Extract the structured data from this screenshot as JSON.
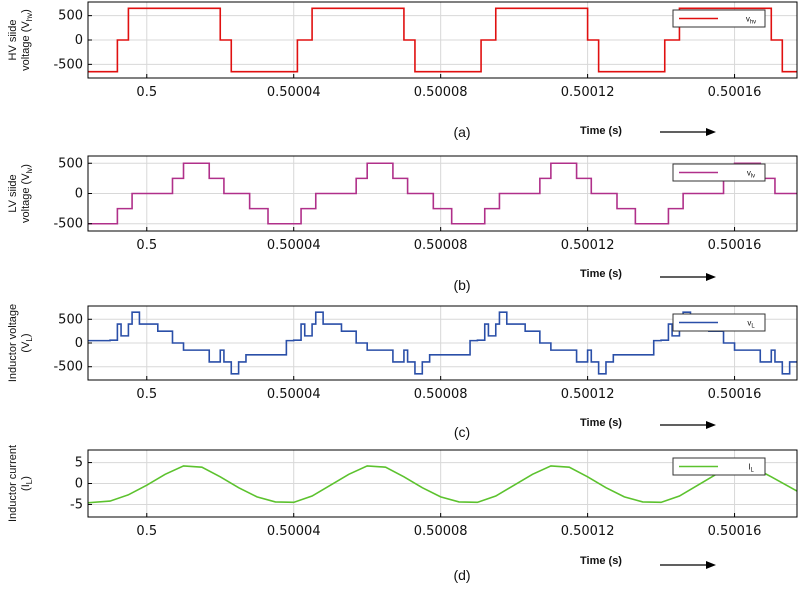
{
  "chart_data": [
    {
      "type": "line",
      "caption": "(a)",
      "ylabel_main": "HV siide",
      "ylabel_sub": "voltage (V",
      "ylabel_subscript": "hv",
      "ylabel_close": ")",
      "xlabel": "Time (s)",
      "xlim": [
        0.499984,
        0.500177
      ],
      "ylim": [
        -780,
        780
      ],
      "yticks": [
        500,
        0,
        -500
      ],
      "ytick_labels": [
        "500",
        "0",
        "-500"
      ],
      "xticks": [
        0.5,
        0.50004,
        0.50008,
        0.50012,
        0.50016
      ],
      "xtick_labels": [
        "0.5",
        "0.50004",
        "0.50008",
        "0.50012",
        "0.50016"
      ],
      "grid": true,
      "legend_position": "top-right",
      "color": "#e01010",
      "series": [
        {
          "name": "v",
          "name_subscript": "hv",
          "step_t": [
            0.499984,
            0.499992,
            0.499995,
            0.50002,
            0.500023,
            0.500041,
            0.500045,
            0.50007,
            0.500073,
            0.500091,
            0.500095,
            0.50012,
            0.500123,
            0.500141,
            0.500145,
            0.50017,
            0.500173,
            0.500177
          ],
          "step_v": [
            -650,
            0,
            650,
            0,
            -650,
            0,
            650,
            0,
            -650,
            0,
            650,
            0,
            -650,
            0,
            650,
            0,
            -650,
            -650
          ]
        }
      ]
    },
    {
      "type": "line",
      "caption": "(b)",
      "ylabel_main": "LV siide",
      "ylabel_sub": "voltage (V",
      "ylabel_subscript": "lv",
      "ylabel_close": ")",
      "xlabel": "Time (s)",
      "xlim": [
        0.499984,
        0.500177
      ],
      "ylim": [
        -620,
        620
      ],
      "yticks": [
        500,
        0,
        -500
      ],
      "ytick_labels": [
        "500",
        "0",
        "-500"
      ],
      "xticks": [
        0.5,
        0.50004,
        0.50008,
        0.50012,
        0.50016
      ],
      "xtick_labels": [
        "0.5",
        "0.50004",
        "0.50008",
        "0.50012",
        "0.50016"
      ],
      "grid": true,
      "legend_position": "top-right",
      "color": "#b0308a",
      "series": [
        {
          "name": "v",
          "name_subscript": "lv",
          "step_t": [
            0.499984,
            0.499992,
            0.499996,
            0.500003,
            0.500007,
            0.50001,
            0.500017,
            0.500021,
            0.500028,
            0.500033,
            0.500038,
            0.500042,
            0.500046,
            0.500053,
            0.500057,
            0.50006,
            0.500067,
            0.500071,
            0.500078,
            0.500083,
            0.500088,
            0.500092,
            0.500096,
            0.500103,
            0.500107,
            0.50011,
            0.500117,
            0.500121,
            0.500128,
            0.500133,
            0.500138,
            0.500142,
            0.500146,
            0.500153,
            0.500157,
            0.50016,
            0.500167,
            0.500171,
            0.500177
          ],
          "step_v": [
            -500,
            -250,
            0,
            0,
            250,
            500,
            250,
            0,
            -250,
            -500,
            -500,
            -250,
            0,
            0,
            250,
            500,
            250,
            0,
            -250,
            -500,
            -500,
            -250,
            0,
            0,
            250,
            500,
            250,
            0,
            -250,
            -500,
            -500,
            -250,
            0,
            0,
            250,
            500,
            250,
            0,
            0
          ]
        }
      ]
    },
    {
      "type": "line",
      "caption": "(c)",
      "ylabel_main": "Inductor voltage",
      "ylabel_sub": "(V",
      "ylabel_subscript": "L",
      "ylabel_close": ")",
      "xlabel": "Time (s)",
      "xlim": [
        0.499984,
        0.500177
      ],
      "ylim": [
        -780,
        780
      ],
      "yticks": [
        500,
        0,
        -500
      ],
      "ytick_labels": [
        "500",
        "0",
        "-500"
      ],
      "xticks": [
        0.5,
        0.50004,
        0.50008,
        0.50012,
        0.50016
      ],
      "xtick_labels": [
        "0.5",
        "0.50004",
        "0.50008",
        "0.50012",
        "0.50016"
      ],
      "grid": true,
      "legend_position": "top-right",
      "color": "#2a4fa8",
      "series": [
        {
          "name": "v",
          "name_subscript": "L",
          "step_t": [
            0.499984,
            0.49999,
            0.499992,
            0.499993,
            0.499995,
            0.499996,
            0.499998,
            0.500003,
            0.500007,
            0.50001,
            0.500017,
            0.50002,
            0.500021,
            0.500023,
            0.500025,
            0.500027,
            0.500033,
            0.500038,
            0.50004,
            0.500042,
            0.500043,
            0.500045,
            0.500046,
            0.500048,
            0.500053,
            0.500057,
            0.50006,
            0.500067,
            0.50007,
            0.500071,
            0.500073,
            0.500075,
            0.500077,
            0.500083,
            0.500088,
            0.50009,
            0.500092,
            0.500093,
            0.500095,
            0.500096,
            0.500098,
            0.500103,
            0.500107,
            0.50011,
            0.500117,
            0.50012,
            0.500121,
            0.500123,
            0.500125,
            0.500127,
            0.500133,
            0.500138,
            0.50014,
            0.500142,
            0.500143,
            0.500145,
            0.500146,
            0.500148,
            0.500153,
            0.500157,
            0.50016,
            0.500167,
            0.50017,
            0.500171,
            0.500173,
            0.500175,
            0.500177
          ],
          "step_v": [
            50,
            60,
            400,
            150,
            400,
            650,
            400,
            250,
            0,
            -150,
            -400,
            -150,
            -400,
            -650,
            -400,
            -250,
            -250,
            50,
            60,
            400,
            150,
            400,
            650,
            400,
            250,
            0,
            -150,
            -400,
            -150,
            -400,
            -650,
            -400,
            -250,
            -250,
            50,
            60,
            400,
            150,
            400,
            650,
            400,
            250,
            0,
            -150,
            -400,
            -150,
            -400,
            -650,
            -400,
            -250,
            -250,
            50,
            60,
            400,
            150,
            400,
            650,
            400,
            250,
            0,
            -150,
            -400,
            -150,
            -400,
            -650,
            -400,
            -400
          ]
        }
      ]
    },
    {
      "type": "line",
      "caption": "(d)",
      "ylabel_main": "Inductor current",
      "ylabel_sub": "(I",
      "ylabel_subscript": "L",
      "ylabel_close": ")",
      "xlabel": "Time (s)",
      "xlim": [
        0.499984,
        0.500177
      ],
      "ylim": [
        -8,
        8
      ],
      "yticks": [
        5,
        0,
        -5
      ],
      "ytick_labels": [
        "5",
        "0",
        "-5"
      ],
      "xticks": [
        0.5,
        0.50004,
        0.50008,
        0.50012,
        0.50016
      ],
      "xtick_labels": [
        "0.5",
        "0.50004",
        "0.50008",
        "0.50012",
        "0.50016"
      ],
      "grid": true,
      "legend_position": "top-right",
      "color": "#5cc22e",
      "series": [
        {
          "name": "I",
          "name_subscript": "L",
          "t": [
            0.499984,
            0.49999,
            0.499995,
            0.5,
            0.500005,
            0.50001,
            0.500015,
            0.50002,
            0.500025,
            0.50003,
            0.500035,
            0.50004,
            0.500045,
            0.50005,
            0.500055,
            0.50006,
            0.500065,
            0.50007,
            0.500075,
            0.50008,
            0.500085,
            0.50009,
            0.500095,
            0.5001,
            0.500105,
            0.50011,
            0.500115,
            0.50012,
            0.500125,
            0.50013,
            0.500135,
            0.50014,
            0.500145,
            0.50015,
            0.500155,
            0.50016,
            0.500165,
            0.50017,
            0.500177
          ],
          "v": [
            -4.6,
            -4.2,
            -2.7,
            -0.4,
            2.2,
            4.2,
            3.9,
            1.6,
            -1.0,
            -3.2,
            -4.4,
            -4.5,
            -3.0,
            -0.4,
            2.2,
            4.2,
            3.9,
            1.6,
            -1.0,
            -3.2,
            -4.4,
            -4.5,
            -3.0,
            -0.4,
            2.2,
            4.2,
            3.9,
            1.6,
            -1.0,
            -3.2,
            -4.4,
            -4.5,
            -3.0,
            -0.4,
            2.2,
            4.2,
            3.9,
            1.6,
            -1.8
          ]
        }
      ]
    }
  ]
}
